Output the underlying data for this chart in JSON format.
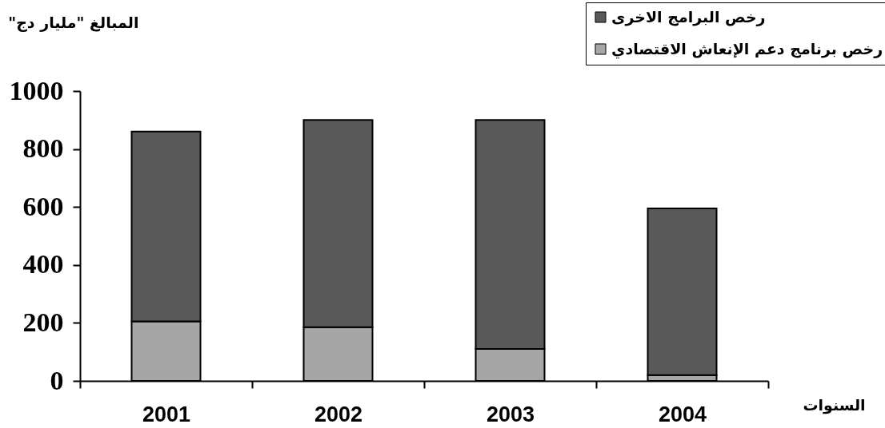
{
  "chart_data": {
    "type": "bar",
    "ylabel": "المبالغ \"مليار دج\"",
    "xlabel": "السنوات",
    "categories": [
      "2001",
      "2002",
      "2003",
      "2004"
    ],
    "stacked": true,
    "series": [
      {
        "name": "رخص برنامج دعم الإنعاش الاقتصادي",
        "color": "#a6a6a6",
        "values": [
          205,
          185,
          110,
          20
        ]
      },
      {
        "name": "رخص البرامج الاخرى",
        "color": "#595959",
        "values": [
          655,
          715,
          790,
          575
        ]
      }
    ],
    "ylim": [
      0,
      1000
    ],
    "yticks": [
      0,
      200,
      400,
      600,
      800,
      1000
    ],
    "legend": "top right"
  }
}
